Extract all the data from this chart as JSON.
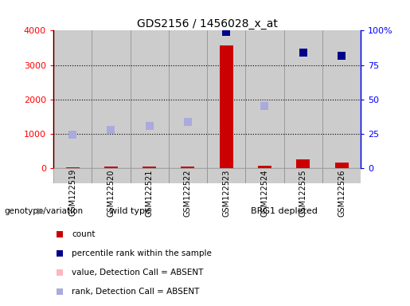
{
  "title": "GDS2156 / 1456028_x_at",
  "samples": [
    "GSM122519",
    "GSM122520",
    "GSM122521",
    "GSM122522",
    "GSM122523",
    "GSM122524",
    "GSM122525",
    "GSM122526"
  ],
  "count_values": [
    35,
    60,
    45,
    40,
    3580,
    75,
    255,
    175
  ],
  "percentile_rank": [
    null,
    null,
    null,
    null,
    99,
    null,
    84,
    82
  ],
  "rank_absent": [
    975,
    1125,
    1225,
    1350,
    null,
    1800,
    null,
    null
  ],
  "value_absent": [
    35,
    60,
    45,
    40,
    null,
    75,
    null,
    null
  ],
  "ylim_left": [
    0,
    4000
  ],
  "ylim_right": [
    0,
    100
  ],
  "yticks_left": [
    0,
    1000,
    2000,
    3000,
    4000
  ],
  "yticks_right": [
    0,
    25,
    50,
    75,
    100
  ],
  "ytick_labels_right": [
    "0",
    "25",
    "50",
    "75",
    "100%"
  ],
  "group1_label": "wild type",
  "group2_label": "BRG1 depleted",
  "group1_samples": 4,
  "group2_samples": 4,
  "group1_color": "#90EE90",
  "group2_color": "#3CB371",
  "genotype_label": "genotype/variation",
  "bar_width": 0.35,
  "count_color": "#CC0000",
  "percentile_color": "#00008B",
  "value_absent_color": "#FFB6C1",
  "rank_absent_color": "#AAAADD",
  "legend_items": [
    {
      "label": "count",
      "color": "#CC0000"
    },
    {
      "label": "percentile rank within the sample",
      "color": "#00008B"
    },
    {
      "label": "value, Detection Call = ABSENT",
      "color": "#FFB6C1"
    },
    {
      "label": "rank, Detection Call = ABSENT",
      "color": "#AAAADD"
    }
  ],
  "grid_color": "black",
  "cell_bg": "#CCCCCC",
  "cell_border": "#888888",
  "plot_bg": "white",
  "figure_bg": "white"
}
